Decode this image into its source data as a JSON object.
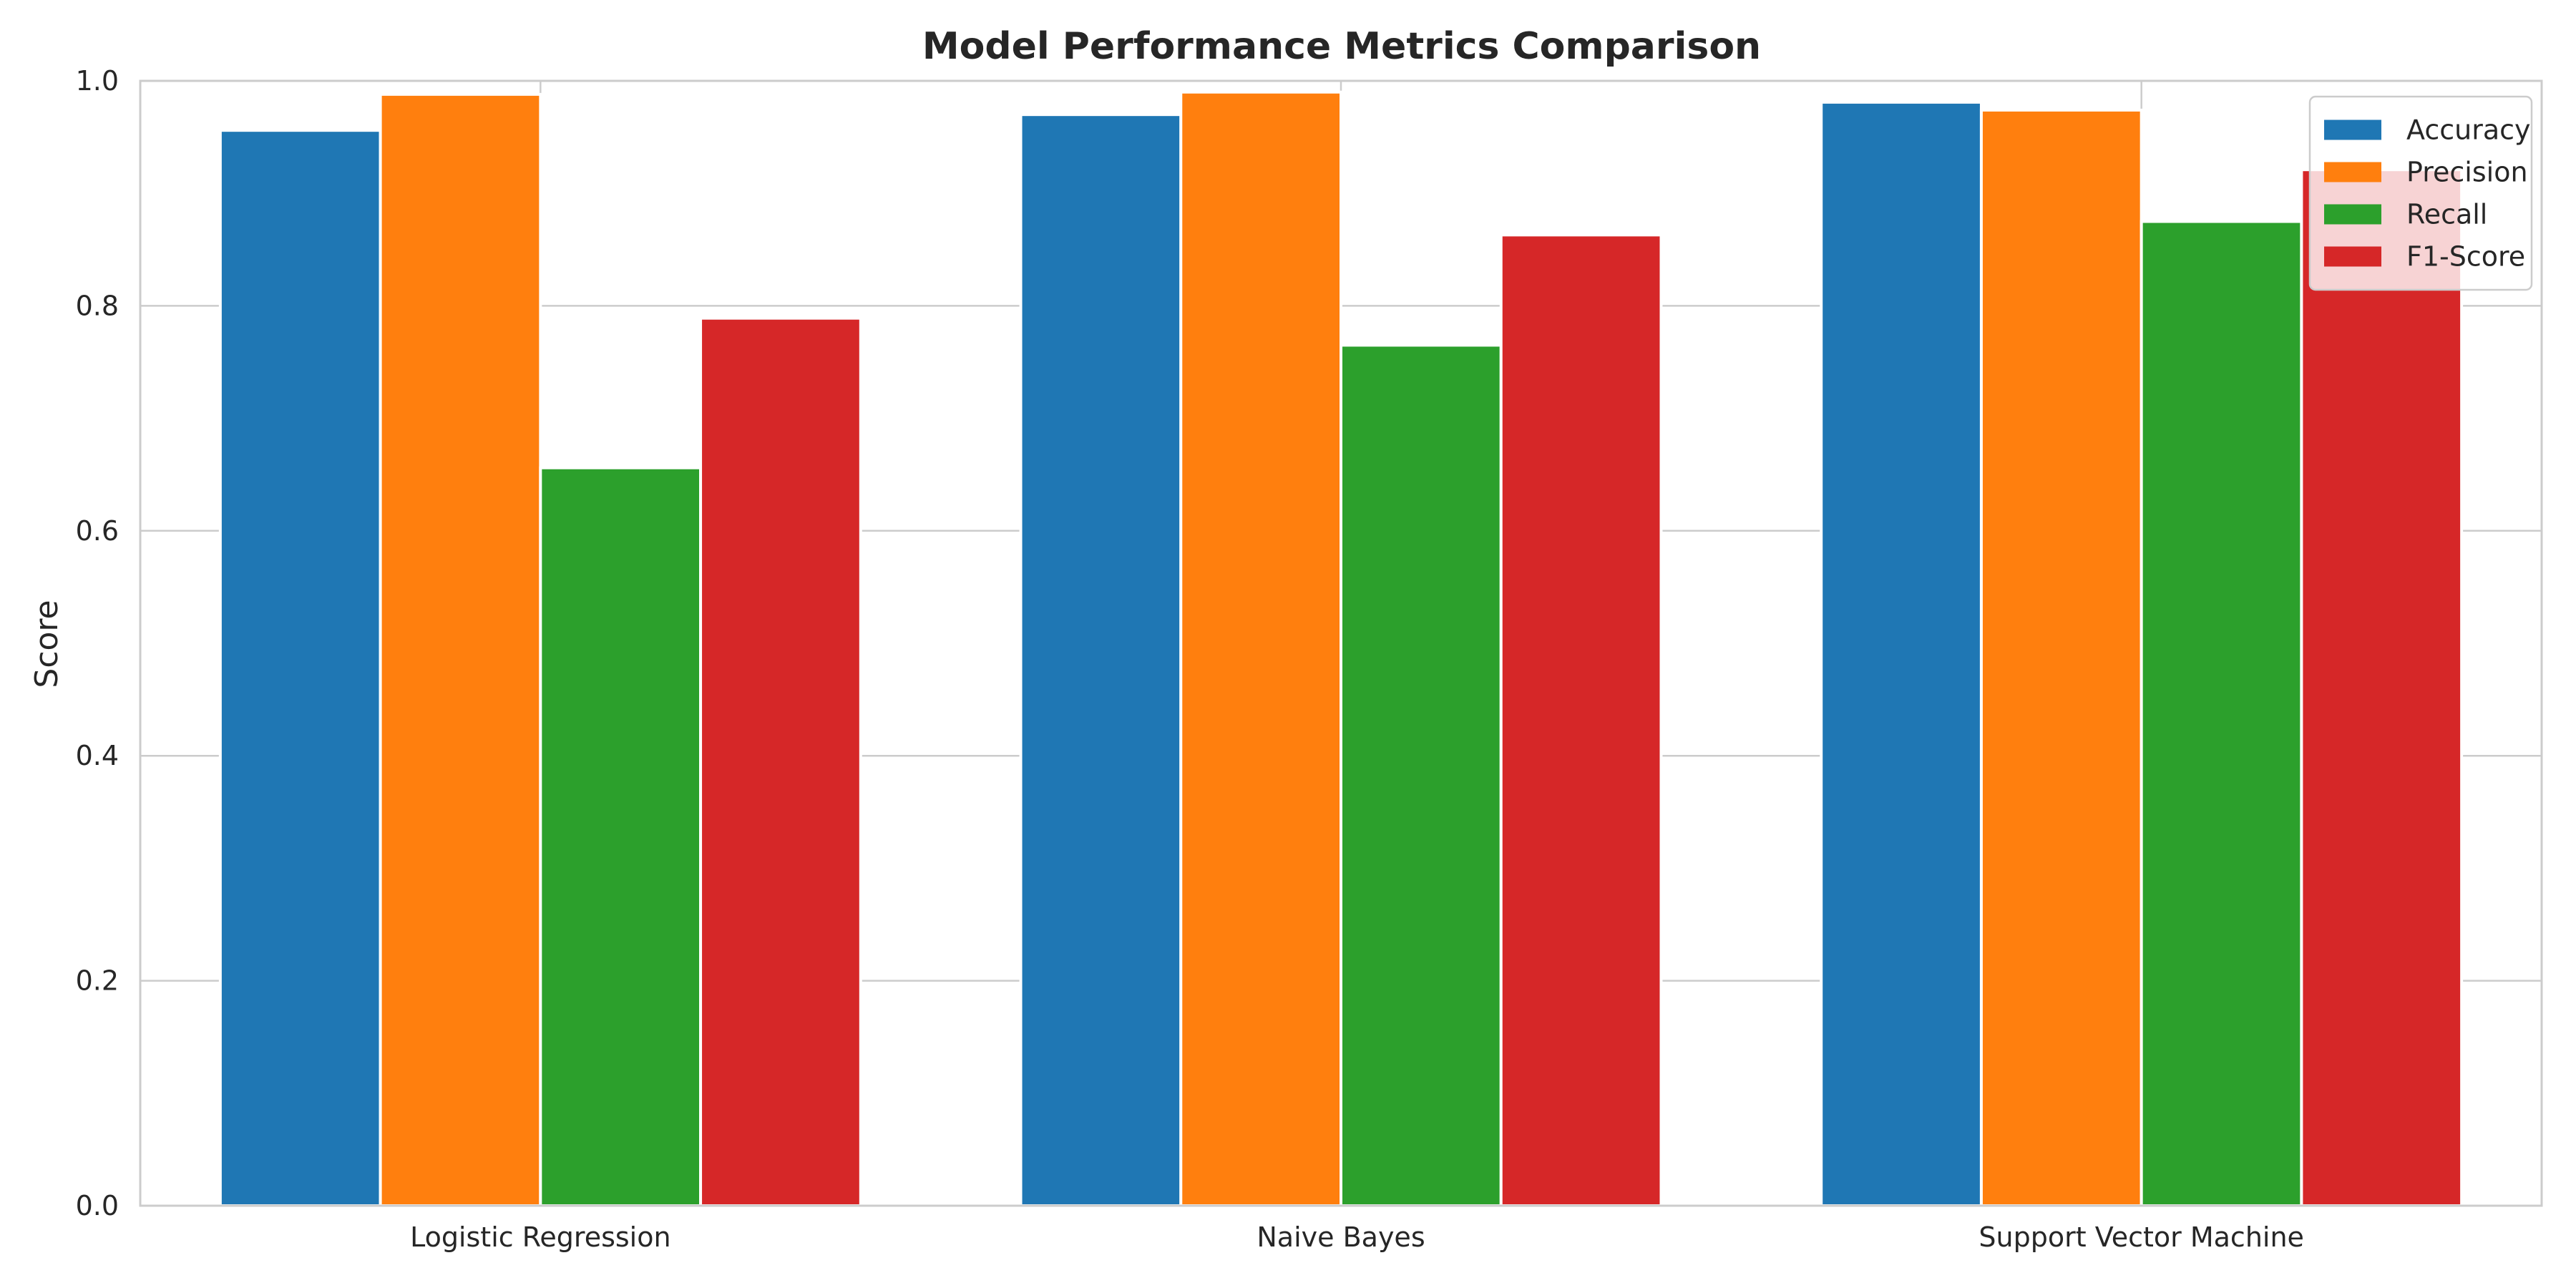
{
  "chart_data": {
    "type": "bar",
    "title": "Model Performance Metrics Comparison",
    "xlabel": "",
    "ylabel": "Score",
    "ylim": [
      0,
      1.0
    ],
    "yticks": [
      "0.0",
      "0.2",
      "0.4",
      "0.6",
      "0.8",
      "1.0"
    ],
    "categories": [
      "Logistic Regression",
      "Naive Bayes",
      "Support Vector Machine"
    ],
    "series": [
      {
        "name": "Accuracy",
        "color": "#1f77b4",
        "values": [
          0.956,
          0.97,
          0.981
        ]
      },
      {
        "name": "Precision",
        "color": "#ff7f0e",
        "values": [
          0.988,
          0.99,
          0.974
        ]
      },
      {
        "name": "Recall",
        "color": "#2ca02c",
        "values": [
          0.656,
          0.765,
          0.875
        ]
      },
      {
        "name": "F1-Score",
        "color": "#d62728",
        "values": [
          0.789,
          0.863,
          0.921
        ]
      }
    ],
    "grid": true,
    "legend_position": "top-right"
  }
}
